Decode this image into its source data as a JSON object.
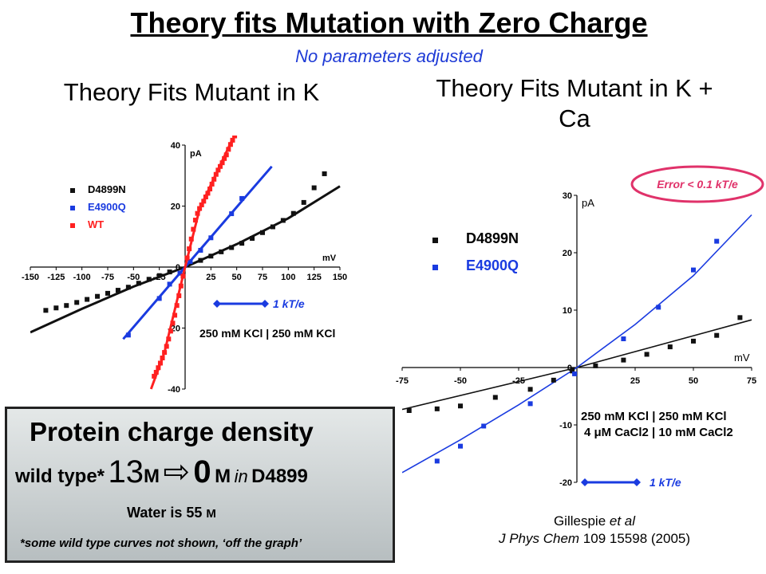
{
  "title": "Theory fits Mutation with Zero Charge",
  "subtitle": "No parameters adjusted",
  "left_panel_title": "Theory Fits Mutant in K",
  "right_panel_title": "Theory Fits Mutant in K + Ca",
  "error_badge": "Error < 0.1 kT/e",
  "scale_label": "1 kT/e",
  "info_box": {
    "heading": "Protein charge density",
    "wild_type_label": "wild type*",
    "wild_type_value": "13",
    "unit": "M",
    "arrow": "⇨",
    "mutant_value": "0",
    "in_word": "in",
    "mutant_name": "D4899",
    "water_line": "Water is 55",
    "footnote": "*some wild type curves not shown, ‘off the graph’"
  },
  "citation": {
    "authors": "Gillespie",
    "et_al": "et al",
    "journal": "J Phys Chem",
    "details": "109 15598 (2005)"
  },
  "colors": {
    "black_series": "#111111",
    "blue_series": "#1a3be0",
    "red_series": "#ff2020",
    "badge": "#e0326a"
  },
  "chart_data": [
    {
      "type": "scatter",
      "title": "",
      "xlabel": "mV",
      "ylabel": "pA",
      "xlim": [
        -150,
        150
      ],
      "ylim": [
        -40,
        40
      ],
      "x_ticks": [
        -150,
        -125,
        -100,
        -75,
        -50,
        -25,
        0,
        25,
        50,
        75,
        100,
        125,
        150
      ],
      "y_ticks": [
        -40,
        -20,
        0,
        20,
        40
      ],
      "annotation": "250 mM KCl | 250 mM KCl",
      "legend_position": "top-left",
      "series": [
        {
          "name": "D4899N",
          "color": "#111111",
          "points": [
            [
              -135,
              -14.2
            ],
            [
              -125,
              -13.4
            ],
            [
              -115,
              -12.6
            ],
            [
              -105,
              -11.6
            ],
            [
              -95,
              -10.6
            ],
            [
              -85,
              -9.6
            ],
            [
              -75,
              -8.6
            ],
            [
              -65,
              -7.6
            ],
            [
              -55,
              -6.6
            ],
            [
              -45,
              -5.3
            ],
            [
              -35,
              -4.0
            ],
            [
              -25,
              -2.8
            ],
            [
              -15,
              -1.6
            ],
            [
              15,
              2.2
            ],
            [
              25,
              3.6
            ],
            [
              35,
              5.0
            ],
            [
              45,
              6.4
            ],
            [
              55,
              7.8
            ],
            [
              65,
              9.4
            ],
            [
              75,
              11.3
            ],
            [
              85,
              13.2
            ],
            [
              95,
              15.3
            ],
            [
              105,
              17.6
            ],
            [
              115,
              21.2
            ],
            [
              125,
              26.0
            ],
            [
              135,
              30.6
            ]
          ],
          "fit": [
            [
              -150,
              -21.4
            ],
            [
              -100,
              -13.7
            ],
            [
              -50,
              -6.4
            ],
            [
              0,
              0
            ],
            [
              50,
              7.5
            ],
            [
              100,
              16.0
            ],
            [
              150,
              26.5
            ]
          ]
        },
        {
          "name": "E4900Q",
          "color": "#1a3be0",
          "points": [
            [
              -55,
              -22.3
            ],
            [
              -25,
              -10.3
            ],
            [
              -15,
              -5.6
            ],
            [
              -5,
              -2.0
            ],
            [
              5,
              1.8
            ],
            [
              15,
              5.5
            ],
            [
              25,
              9.6
            ],
            [
              45,
              17.5
            ],
            [
              55,
              22.5
            ]
          ],
          "fit": [
            [
              -60,
              -23.6
            ],
            [
              0,
              0
            ],
            [
              60,
              23.6
            ],
            [
              84,
              33
            ]
          ]
        },
        {
          "name": "WT",
          "color": "#ff2020",
          "points": [
            [
              -30,
              -35.8
            ],
            [
              -28,
              -34.5
            ],
            [
              -26,
              -33.0
            ],
            [
              -24,
              -31.5
            ],
            [
              -22,
              -29.8
            ],
            [
              -20,
              -28.0
            ],
            [
              -18,
              -26.0
            ],
            [
              -16,
              -23.6
            ],
            [
              -14,
              -21.0
            ],
            [
              -12,
              -18.4
            ],
            [
              -10,
              -15.8
            ],
            [
              -8,
              -12.6
            ],
            [
              -6,
              -9.4
            ],
            [
              -4,
              -6.2
            ],
            [
              -2,
              -3.0
            ],
            [
              2,
              3.0
            ],
            [
              4,
              6.0
            ],
            [
              6,
              9.2
            ],
            [
              8,
              12.4
            ],
            [
              10,
              15.4
            ],
            [
              12,
              17.6
            ],
            [
              14,
              19.2
            ],
            [
              16,
              20.4
            ],
            [
              18,
              21.6
            ],
            [
              20,
              23.0
            ],
            [
              22,
              24.2
            ],
            [
              24,
              25.6
            ],
            [
              26,
              27.2
            ],
            [
              28,
              28.8
            ],
            [
              30,
              30.4
            ],
            [
              32,
              31.8
            ],
            [
              34,
              33.0
            ],
            [
              36,
              34.2
            ],
            [
              38,
              35.6
            ],
            [
              40,
              36.8
            ],
            [
              42,
              38.6
            ],
            [
              44,
              40.2
            ],
            [
              46,
              41.6
            ],
            [
              48,
              43.0
            ],
            [
              50,
              44.8
            ]
          ],
          "fit": [
            [
              -33,
              -40
            ],
            [
              -20,
              -28.0
            ],
            [
              0,
              0
            ],
            [
              14,
              19.0
            ],
            [
              30,
              30.6
            ],
            [
              46,
              42
            ]
          ]
        }
      ]
    },
    {
      "type": "scatter",
      "title": "",
      "xlabel": "mV",
      "ylabel": "pA",
      "xlim": [
        -75,
        75
      ],
      "ylim": [
        -20,
        30
      ],
      "x_ticks": [
        -75,
        -50,
        -25,
        0,
        25,
        50,
        75
      ],
      "y_ticks": [
        -20,
        -10,
        0,
        10,
        20,
        30
      ],
      "annotation": [
        "250 mM KCl | 250 mM KCl",
        "4 μM CaCl2 | 10 mM CaCl2"
      ],
      "legend_position": "top-left",
      "series": [
        {
          "name": "D4899N",
          "color": "#111111",
          "points": [
            [
              -72,
              -7.5
            ],
            [
              -60,
              -7.2
            ],
            [
              -50,
              -6.7
            ],
            [
              -35,
              -5.2
            ],
            [
              -20,
              -3.8
            ],
            [
              -10,
              -2.2
            ],
            [
              -2,
              -0.6
            ],
            [
              8,
              0.3
            ],
            [
              20,
              1.3
            ],
            [
              30,
              2.3
            ],
            [
              40,
              3.6
            ],
            [
              50,
              4.6
            ],
            [
              60,
              5.6
            ],
            [
              70,
              8.7
            ]
          ],
          "fit": [
            [
              -75,
              -7.3
            ],
            [
              0,
              0
            ],
            [
              75,
              8.3
            ]
          ]
        },
        {
          "name": "E4900Q",
          "color": "#1a3be0",
          "points": [
            [
              -60,
              -16.3
            ],
            [
              -50,
              -13.7
            ],
            [
              -40,
              -10.2
            ],
            [
              -20,
              -6.3
            ],
            [
              -1,
              -1.1
            ],
            [
              20,
              5.0
            ],
            [
              35,
              10.5
            ],
            [
              50,
              17.0
            ],
            [
              60,
              22.0
            ]
          ],
          "fit": [
            [
              -75,
              -18.3
            ],
            [
              -50,
              -12.6
            ],
            [
              -25,
              -6.5
            ],
            [
              0,
              0
            ],
            [
              25,
              7.5
            ],
            [
              50,
              16.0
            ],
            [
              75,
              26.6
            ]
          ]
        }
      ]
    }
  ]
}
